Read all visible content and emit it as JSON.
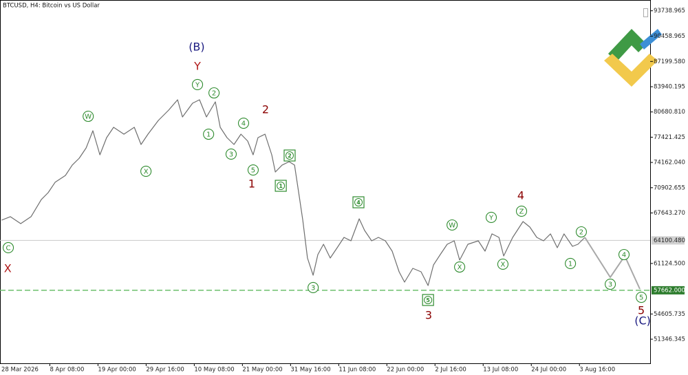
{
  "chart_data": {
    "type": "line",
    "title": "BTCUSD, H4:  Bitcoin vs US Dollar",
    "xlim": [
      7,
      3464
    ],
    "ylim": [
      48238,
      95130
    ],
    "xticks": [
      {
        "value": 0,
        "label": "28 Mar 2026"
      },
      {
        "value": 272,
        "label": "8 Apr 08:00"
      },
      {
        "value": 528,
        "label": "19 Apr 00:00"
      },
      {
        "value": 784,
        "label": "29 Apr 16:00"
      },
      {
        "value": 1040,
        "label": "10 May 08:00"
      },
      {
        "value": 1296,
        "label": "21 May 00:00"
      },
      {
        "value": 1552,
        "label": "31 May 16:00"
      },
      {
        "value": 1808,
        "label": "11 Jun 08:00"
      },
      {
        "value": 2064,
        "label": "22 Jun 00:00"
      },
      {
        "value": 2320,
        "label": "2 Jul 16:00"
      },
      {
        "value": 2576,
        "label": "13 Jul 08:00"
      },
      {
        "value": 2832,
        "label": "24 Jul 00:00"
      },
      {
        "value": 3088,
        "label": "3 Aug 16:00"
      }
    ],
    "yticks": [
      93738.965,
      90458.965,
      {
        "value": 87199.58,
        "label": "87199.580"
      },
      83940.195,
      {
        "value": 80680.81,
        "label": "80680.810"
      },
      77421.425,
      {
        "value": 74162.04,
        "label": "74162.040"
      },
      70902.655,
      {
        "value": 67643.27,
        "label": "67643.270"
      },
      {
        "value": 61124.5,
        "label": "61124.500"
      },
      54605.735,
      51346.345
    ],
    "series": [
      {
        "color": "#6e6e6e",
        "x": [
          15,
          62,
          117,
          172,
          227,
          263,
          300,
          355,
          391,
          428,
          465,
          501,
          538,
          574,
          611,
          666,
          721,
          757,
          794,
          849,
          904,
          951,
          977,
          1031,
          1068,
          1105,
          1152,
          1178,
          1214,
          1251,
          1288,
          1324,
          1353,
          1379,
          1416,
          1452,
          1471,
          1507,
          1544,
          1573,
          1598,
          1617,
          1642,
          1672,
          1697,
          1727,
          1763,
          1800,
          1836,
          1873,
          1917,
          1946,
          1983,
          2019,
          2056,
          2092,
          2129,
          2158,
          2202,
          2246,
          2283,
          2312,
          2348,
          2385,
          2422,
          2451,
          2495,
          2550,
          2586,
          2623,
          2660,
          2685,
          2733,
          2788,
          2824,
          2861,
          2897,
          2934,
          2970,
          3006,
          3051,
          3080,
          3117
        ],
        "values": [
          66710,
          67160,
          66270,
          67160,
          69380,
          70260,
          71600,
          72480,
          73820,
          74700,
          76040,
          78260,
          75150,
          77370,
          78700,
          77810,
          78700,
          76480,
          77810,
          79590,
          80920,
          82250,
          80030,
          81810,
          82250,
          80030,
          81990,
          78700,
          77370,
          76480,
          77810,
          76920,
          75150,
          77370,
          77810,
          75150,
          72930,
          73820,
          74260,
          73820,
          69820,
          66710,
          61830,
          59610,
          62270,
          63600,
          61830,
          63160,
          64490,
          64050,
          66890,
          65380,
          64050,
          64490,
          64050,
          62710,
          60050,
          58720,
          60490,
          60050,
          58270,
          60940,
          62270,
          63600,
          64050,
          61560,
          63600,
          64050,
          62710,
          64940,
          64490,
          62090,
          64490,
          66530,
          65820,
          64490,
          64050,
          64940,
          63160,
          64940,
          63340,
          63600,
          64490
        ]
      },
      {
        "color": "#a8a8a8",
        "x": [
          3117,
          3252,
          3329,
          3409
        ],
        "values": [
          64490,
          59340,
          62090,
          57830
        ]
      }
    ],
    "price_lines": [
      {
        "value": 64100.48,
        "label": "64100.480",
        "color": "#c8c8c8",
        "dashed": false
      },
      {
        "value": 57662,
        "label": "57662.000",
        "color": "#6cbf6c",
        "dashed": true
      }
    ],
    "wave_labels": [
      {
        "text": "C",
        "x": 51,
        "y": 63160,
        "color": "#2e8b2e",
        "shape": "circle"
      },
      {
        "text": "W",
        "x": 476,
        "y": 80120,
        "color": "#2e8b2e",
        "shape": "circle"
      },
      {
        "text": "X",
        "x": 783,
        "y": 73020,
        "color": "#2e8b2e",
        "shape": "circle"
      },
      {
        "text": "Y",
        "x": 1057,
        "y": 84210,
        "color": "#2e8b2e",
        "shape": "circle"
      },
      {
        "text": "2",
        "x": 1145,
        "y": 83140,
        "color": "#2e8b2e",
        "shape": "circle"
      },
      {
        "text": "1",
        "x": 1116,
        "y": 77810,
        "color": "#2e8b2e",
        "shape": "circle"
      },
      {
        "text": "4",
        "x": 1302,
        "y": 79230,
        "color": "#2e8b2e",
        "shape": "circle"
      },
      {
        "text": "3",
        "x": 1236,
        "y": 75240,
        "color": "#2e8b2e",
        "shape": "circle"
      },
      {
        "text": "5",
        "x": 1353,
        "y": 73190,
        "color": "#2e8b2e",
        "shape": "circle"
      },
      {
        "text": "3",
        "x": 1672,
        "y": 58010,
        "color": "#2e8b2e",
        "shape": "circle"
      },
      {
        "text": "W",
        "x": 2411,
        "y": 66090,
        "color": "#2e8b2e",
        "shape": "circle"
      },
      {
        "text": "X",
        "x": 2451,
        "y": 60670,
        "color": "#2e8b2e",
        "shape": "circle"
      },
      {
        "text": "Y",
        "x": 2619,
        "y": 67070,
        "color": "#2e8b2e",
        "shape": "circle"
      },
      {
        "text": "X",
        "x": 2681,
        "y": 61030,
        "color": "#2e8b2e",
        "shape": "circle"
      },
      {
        "text": "Z",
        "x": 2780,
        "y": 67870,
        "color": "#2e8b2e",
        "shape": "circle"
      },
      {
        "text": "2",
        "x": 3098,
        "y": 65200,
        "color": "#2e8b2e",
        "shape": "circle"
      },
      {
        "text": "1",
        "x": 3040,
        "y": 61120,
        "color": "#2e8b2e",
        "shape": "circle"
      },
      {
        "text": "3",
        "x": 3252,
        "y": 58450,
        "color": "#2e8b2e",
        "shape": "circle"
      },
      {
        "text": "4",
        "x": 3325,
        "y": 62270,
        "color": "#2e8b2e",
        "shape": "circle"
      },
      {
        "text": "5",
        "x": 3417,
        "y": 56760,
        "color": "#2e8b2e",
        "shape": "circle"
      },
      {
        "text": "1",
        "x": 1500,
        "y": 71150,
        "color": "#2e8b2e",
        "shape": "box"
      },
      {
        "text": "2",
        "x": 1547,
        "y": 75060,
        "color": "#2e8b2e",
        "shape": "box"
      },
      {
        "text": "4",
        "x": 1913,
        "y": 69020,
        "color": "#2e8b2e",
        "shape": "box"
      },
      {
        "text": "5",
        "x": 2283,
        "y": 56410,
        "color": "#2e8b2e",
        "shape": "box"
      },
      {
        "text": "X",
        "x": 48,
        "y": 60410,
        "color": "#b01818",
        "shape": "none"
      },
      {
        "text": "Y",
        "x": 1057,
        "y": 86520,
        "color": "#b01818",
        "shape": "none"
      },
      {
        "text": "2",
        "x": 1419,
        "y": 80920,
        "color": "#8b0000",
        "shape": "none"
      },
      {
        "text": "1",
        "x": 1346,
        "y": 71330,
        "color": "#8b0000",
        "shape": "none"
      },
      {
        "text": "3",
        "x": 2286,
        "y": 54370,
        "color": "#8b0000",
        "shape": "none"
      },
      {
        "text": "4",
        "x": 2776,
        "y": 69820,
        "color": "#8b0000",
        "shape": "none"
      },
      {
        "text": "5",
        "x": 3417,
        "y": 54990,
        "color": "#8b0000",
        "shape": "none"
      },
      {
        "text": "(B)",
        "x": 1053,
        "y": 89000,
        "color": "#1a1a80",
        "shape": "none"
      },
      {
        "text": "(C)",
        "x": 3424,
        "y": 53660,
        "color": "#1a1a80",
        "shape": "none"
      }
    ]
  }
}
